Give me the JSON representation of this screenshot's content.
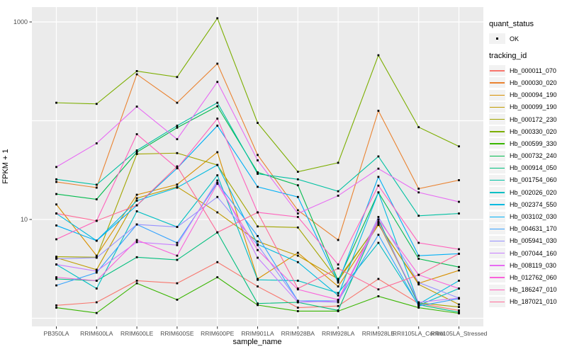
{
  "chart_data": {
    "type": "line",
    "title": "",
    "xlabel": "sample_name",
    "ylabel": "FPKM + 1",
    "y_scale": "log10",
    "legend_position": "right",
    "grid": true,
    "panel_bg": "#EBEBEB",
    "grid_color": "#FFFFFF",
    "point_color": "#000000",
    "legend_key_bg": "#F2F2F2",
    "axis_text_color": "#4D4D4D",
    "y_tick_labels": [
      "1000",
      "10"
    ],
    "y_tick_values": [
      1000,
      10
    ],
    "y_gridline_values": [
      1,
      10,
      100,
      1000
    ],
    "ylim": [
      0.83,
      1450
    ],
    "categories": [
      "PB350LA",
      "RRIM600LA",
      "RRIM600LE",
      "RRIM600SE",
      "RRIM600PE",
      "RRIM901LA",
      "RRIM928BA",
      "RRIM928LA",
      "RRIM928LE",
      "RRII105LA_Control",
      "RRII105LA_Stressed"
    ],
    "legend": {
      "quant_status": {
        "title": "quant_status",
        "entries": [
          {
            "label": "OK",
            "marker": "point",
            "color": "#000000"
          }
        ]
      },
      "tracking_id": {
        "title": "tracking_id"
      }
    },
    "series": [
      {
        "name": "Hb_000011_070",
        "color": "#F8766D",
        "values": [
          1.35,
          1.45,
          2.4,
          2.26,
          3.7,
          2.1,
          1.28,
          1.33,
          2.5,
          1.41,
          1.2
        ]
      },
      {
        "name": "Hb_000030_020",
        "color": "#EA8331",
        "values": [
          24,
          21,
          295,
          152,
          378,
          45,
          12.4,
          6.2,
          126,
          20.5,
          25
        ]
      },
      {
        "name": "Hb_000094_190",
        "color": "#D89000",
        "values": [
          14.2,
          4.3,
          17.8,
          22.6,
          48,
          2.5,
          4.6,
          2.1,
          8.8,
          2.26,
          3.05
        ]
      },
      {
        "name": "Hb_000099_190",
        "color": "#C09B00",
        "values": [
          4.1,
          3.1,
          16.4,
          21.4,
          11.8,
          6.0,
          4.3,
          2.5,
          9.0,
          2.2,
          1.38
        ]
      },
      {
        "name": "Hb_000172_230",
        "color": "#A3A500",
        "values": [
          4.2,
          4.15,
          46,
          47,
          35.6,
          8.5,
          8.3,
          2.4,
          9.2,
          1.43,
          1.3
        ]
      },
      {
        "name": "Hb_000330_020",
        "color": "#7CAE00",
        "values": [
          152,
          148,
          318,
          277,
          1090,
          95,
          30.4,
          37.5,
          460,
          86,
          55
        ]
      },
      {
        "name": "Hb_000599_330",
        "color": "#39B600",
        "values": [
          1.28,
          1.13,
          2.26,
          1.54,
          2.6,
          1.36,
          1.18,
          1.18,
          1.67,
          1.28,
          1.12
        ]
      },
      {
        "name": "Hb_000732_240",
        "color": "#00BB4E",
        "values": [
          18.1,
          16,
          48,
          85,
          140,
          30,
          22.2,
          2.4,
          18.8,
          4.0,
          3.3
        ]
      },
      {
        "name": "Hb_000914_050",
        "color": "#00BF7D",
        "values": [
          2.5,
          2.4,
          4.15,
          3.9,
          7.4,
          1.41,
          1.45,
          1.2,
          10.0,
          1.37,
          1.15
        ]
      },
      {
        "name": "Hb_001754_060",
        "color": "#00C1A3",
        "values": [
          25.5,
          22.5,
          50,
          89,
          152,
          29,
          25.5,
          19.3,
          43.5,
          10.9,
          11.5
        ]
      },
      {
        "name": "Hb_002026_020",
        "color": "#00BFC4",
        "values": [
          3.5,
          2.0,
          12.1,
          8.4,
          28,
          2.45,
          2.4,
          1.8,
          5.8,
          1.35,
          2.0
        ]
      },
      {
        "name": "Hb_002374_550",
        "color": "#00BAE0",
        "values": [
          11.5,
          6.1,
          15.5,
          21.0,
          35.6,
          5.6,
          3.7,
          1.7,
          18.8,
          1.39,
          2.4
        ]
      },
      {
        "name": "Hb_003102_030",
        "color": "#00B0F6",
        "values": [
          8.7,
          6.1,
          13.9,
          33,
          89,
          21.4,
          16.9,
          2.3,
          27,
          4.3,
          4.5
        ]
      },
      {
        "name": "Hb_004631_170",
        "color": "#35A2FF",
        "values": [
          2.15,
          2.9,
          8.9,
          5.8,
          23.5,
          6.8,
          1.5,
          1.5,
          7.0,
          1.33,
          1.58
        ]
      },
      {
        "name": "Hb_005941_030",
        "color": "#9590FF",
        "values": [
          4.0,
          4.1,
          8.9,
          8.4,
          16.9,
          5.5,
          1.5,
          1.45,
          10.6,
          2.3,
          1.6
        ]
      },
      {
        "name": "Hb_007044_160",
        "color": "#C77CFF",
        "values": [
          3.5,
          3.0,
          5.9,
          5.5,
          24.8,
          4.1,
          1.45,
          1.5,
          9.5,
          1.45,
          1.6
        ]
      },
      {
        "name": "Hb_008119_030",
        "color": "#E76BF3",
        "values": [
          34,
          59,
          139,
          65,
          247,
          39.7,
          11.5,
          17.4,
          32.7,
          18.8,
          15.1
        ]
      },
      {
        "name": "Hb_012762_060",
        "color": "#FA62DB",
        "values": [
          2.6,
          2.4,
          6.2,
          4.3,
          23,
          4.9,
          1.96,
          1.54,
          10,
          2.75,
          2.0
        ]
      },
      {
        "name": "Hb_186247_010",
        "color": "#FF62BC",
        "values": [
          6.3,
          9.7,
          73,
          33,
          105,
          11.8,
          10.6,
          3.5,
          22,
          5.8,
          5.0
        ]
      },
      {
        "name": "Hb_187021_010",
        "color": "#FF6A98",
        "values": [
          11.5,
          9.7,
          13.9,
          34.5,
          7.4,
          11.8,
          2.0,
          3.2,
          1.96,
          2.75,
          4.5
        ]
      }
    ]
  }
}
